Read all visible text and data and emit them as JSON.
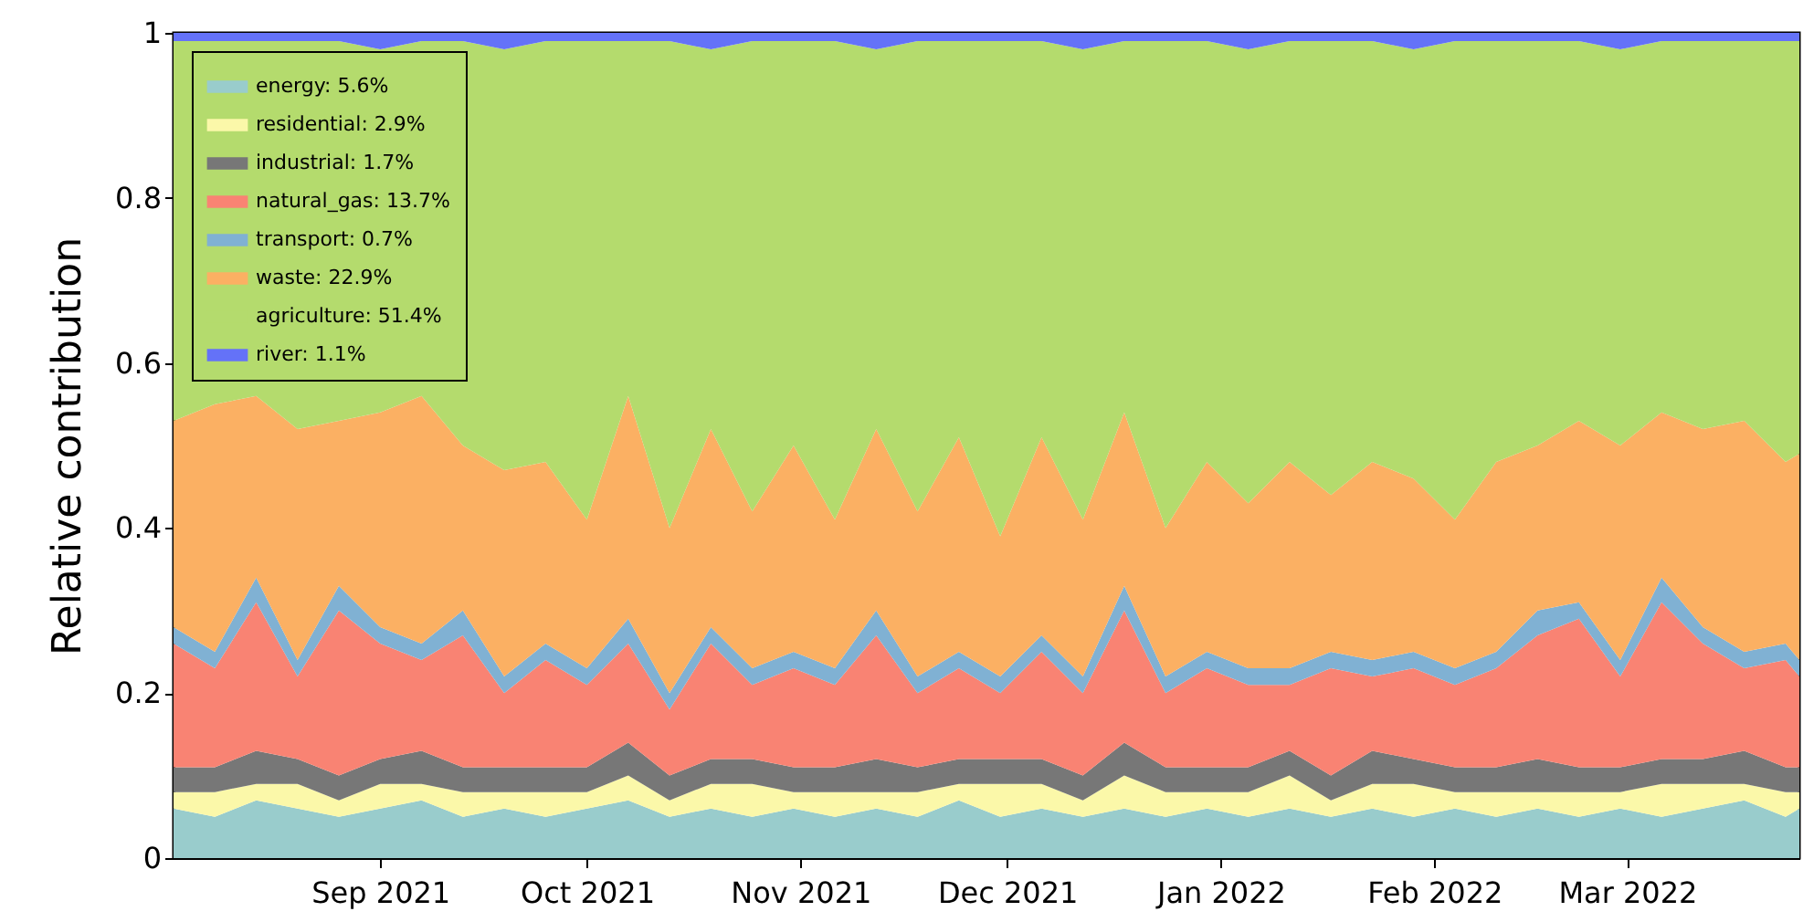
{
  "chart_data": {
    "type": "area",
    "stacked": true,
    "ylabel": "Relative contribution",
    "x": [
      "2021-08-02",
      "2021-08-08",
      "2021-08-14",
      "2021-08-20",
      "2021-08-26",
      "2021-09-01",
      "2021-09-07",
      "2021-09-13",
      "2021-09-19",
      "2021-09-25",
      "2021-10-01",
      "2021-10-07",
      "2021-10-13",
      "2021-10-19",
      "2021-10-25",
      "2021-10-31",
      "2021-11-06",
      "2021-11-12",
      "2021-11-18",
      "2021-11-24",
      "2021-11-30",
      "2021-12-06",
      "2021-12-12",
      "2021-12-18",
      "2021-12-24",
      "2021-12-30",
      "2022-01-05",
      "2022-01-11",
      "2022-01-17",
      "2022-01-23",
      "2022-01-29",
      "2022-02-04",
      "2022-02-10",
      "2022-02-16",
      "2022-02-22",
      "2022-02-28",
      "2022-03-06",
      "2022-03-12",
      "2022-03-18",
      "2022-03-24",
      "2022-03-26"
    ],
    "series": [
      {
        "name": "energy: 5.6%",
        "color": "#99cccc",
        "values": [
          0.06,
          0.05,
          0.07,
          0.06,
          0.05,
          0.06,
          0.07,
          0.05,
          0.06,
          0.05,
          0.06,
          0.07,
          0.05,
          0.06,
          0.05,
          0.06,
          0.05,
          0.06,
          0.05,
          0.07,
          0.05,
          0.06,
          0.05,
          0.06,
          0.05,
          0.06,
          0.05,
          0.06,
          0.05,
          0.06,
          0.05,
          0.06,
          0.05,
          0.06,
          0.05,
          0.06,
          0.05,
          0.06,
          0.07,
          0.05,
          0.06
        ]
      },
      {
        "name": "residential: 2.9%",
        "color": "#fbf8a9",
        "values": [
          0.02,
          0.03,
          0.02,
          0.03,
          0.02,
          0.03,
          0.02,
          0.03,
          0.02,
          0.03,
          0.02,
          0.03,
          0.02,
          0.03,
          0.04,
          0.02,
          0.03,
          0.02,
          0.03,
          0.02,
          0.04,
          0.03,
          0.02,
          0.04,
          0.03,
          0.02,
          0.03,
          0.04,
          0.02,
          0.03,
          0.04,
          0.02,
          0.03,
          0.02,
          0.03,
          0.02,
          0.04,
          0.03,
          0.02,
          0.03,
          0.02
        ]
      },
      {
        "name": "industrial: 1.7%",
        "color": "#777777",
        "values": [
          0.03,
          0.03,
          0.04,
          0.03,
          0.03,
          0.03,
          0.04,
          0.03,
          0.03,
          0.03,
          0.03,
          0.04,
          0.03,
          0.03,
          0.03,
          0.03,
          0.03,
          0.04,
          0.03,
          0.03,
          0.03,
          0.03,
          0.03,
          0.04,
          0.03,
          0.03,
          0.03,
          0.03,
          0.03,
          0.04,
          0.03,
          0.03,
          0.03,
          0.04,
          0.03,
          0.03,
          0.03,
          0.03,
          0.04,
          0.03,
          0.03
        ]
      },
      {
        "name": "natural_gas: 13.7%",
        "color": "#f98373",
        "values": [
          0.15,
          0.12,
          0.18,
          0.1,
          0.2,
          0.14,
          0.11,
          0.16,
          0.09,
          0.13,
          0.1,
          0.12,
          0.08,
          0.14,
          0.09,
          0.12,
          0.1,
          0.15,
          0.09,
          0.11,
          0.08,
          0.13,
          0.1,
          0.16,
          0.09,
          0.12,
          0.1,
          0.08,
          0.13,
          0.09,
          0.11,
          0.1,
          0.12,
          0.15,
          0.18,
          0.11,
          0.19,
          0.14,
          0.1,
          0.13,
          0.11
        ]
      },
      {
        "name": "transport: 0.7%",
        "color": "#80b1d3",
        "values": [
          0.02,
          0.02,
          0.03,
          0.02,
          0.03,
          0.02,
          0.02,
          0.03,
          0.02,
          0.02,
          0.02,
          0.03,
          0.02,
          0.02,
          0.02,
          0.02,
          0.02,
          0.03,
          0.02,
          0.02,
          0.02,
          0.02,
          0.02,
          0.03,
          0.02,
          0.02,
          0.02,
          0.02,
          0.02,
          0.02,
          0.02,
          0.02,
          0.02,
          0.03,
          0.02,
          0.02,
          0.03,
          0.02,
          0.02,
          0.02,
          0.02
        ]
      },
      {
        "name": "waste: 22.9%",
        "color": "#fbb063",
        "values": [
          0.25,
          0.3,
          0.22,
          0.28,
          0.2,
          0.26,
          0.3,
          0.2,
          0.25,
          0.22,
          0.18,
          0.27,
          0.2,
          0.24,
          0.19,
          0.25,
          0.18,
          0.22,
          0.2,
          0.26,
          0.17,
          0.24,
          0.19,
          0.21,
          0.18,
          0.23,
          0.2,
          0.25,
          0.19,
          0.24,
          0.21,
          0.18,
          0.23,
          0.2,
          0.22,
          0.26,
          0.2,
          0.24,
          0.28,
          0.22,
          0.25
        ]
      },
      {
        "name": "agriculture: 51.4%",
        "color": "#b4db6d",
        "values": [
          0.46,
          0.44,
          0.43,
          0.47,
          0.46,
          0.44,
          0.43,
          0.49,
          0.51,
          0.51,
          0.58,
          0.43,
          0.59,
          0.46,
          0.57,
          0.49,
          0.58,
          0.46,
          0.57,
          0.48,
          0.6,
          0.48,
          0.57,
          0.45,
          0.59,
          0.51,
          0.55,
          0.51,
          0.55,
          0.51,
          0.52,
          0.58,
          0.51,
          0.49,
          0.46,
          0.48,
          0.45,
          0.47,
          0.46,
          0.51,
          0.5
        ]
      },
      {
        "name": "river: 1.1%",
        "color": "#6472f8",
        "values": [
          0.01,
          0.01,
          0.01,
          0.01,
          0.01,
          0.02,
          0.01,
          0.01,
          0.02,
          0.01,
          0.01,
          0.01,
          0.01,
          0.02,
          0.01,
          0.01,
          0.01,
          0.02,
          0.01,
          0.01,
          0.01,
          0.01,
          0.02,
          0.01,
          0.01,
          0.01,
          0.02,
          0.01,
          0.01,
          0.01,
          0.02,
          0.01,
          0.01,
          0.01,
          0.01,
          0.02,
          0.01,
          0.01,
          0.01,
          0.01,
          0.01
        ]
      }
    ],
    "xlim": [
      "2021-08-02",
      "2022-03-26"
    ],
    "xticks": [
      {
        "value": "2021-09-01",
        "label": "Sep 2021"
      },
      {
        "value": "2021-10-01",
        "label": "Oct 2021"
      },
      {
        "value": "2021-11-01",
        "label": "Nov 2021"
      },
      {
        "value": "2021-12-01",
        "label": "Dec 2021"
      },
      {
        "value": "2022-01-01",
        "label": "Jan 2022"
      },
      {
        "value": "2022-02-01",
        "label": "Feb 2022"
      },
      {
        "value": "2022-03-01",
        "label": "Mar 2022"
      }
    ],
    "ylim": [
      0,
      1
    ],
    "yticks": [
      0,
      0.2,
      0.4,
      0.6,
      0.8,
      1
    ],
    "legend": "top left"
  }
}
